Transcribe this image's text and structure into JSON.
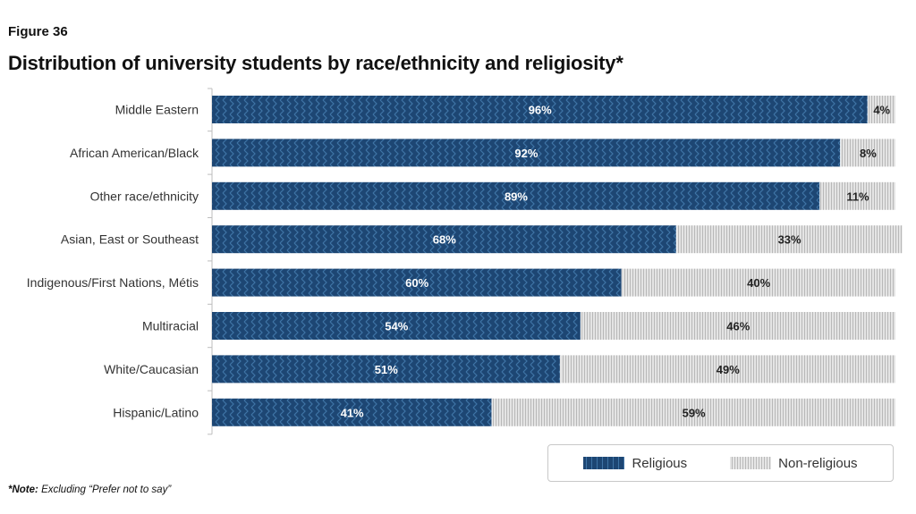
{
  "figure_label": "Figure 36",
  "title": "Distribution of university students by race/ethnicity and religiosity*",
  "note": {
    "prefix": "*Note:",
    "text": " Excluding “Prefer not to say”"
  },
  "colors": {
    "religious": "#1d4673",
    "religious_stripe": "#3f74a6",
    "non_religious": "#dcdcdc",
    "non_religious_stripe": "#b9b9b9"
  },
  "legend": {
    "religious": "Religious",
    "non_religious": "Non-religious"
  },
  "chart_data": {
    "type": "bar",
    "orientation": "horizontal",
    "stacked": true,
    "legend_position": "bottom-right",
    "categories": [
      "Middle Eastern",
      "African American/Black",
      "Other race/ethnicity",
      "Asian, East or Southeast",
      "Indigenous/First Nations, Métis",
      "Multiracial",
      "White/Caucasian",
      "Hispanic/Latino"
    ],
    "series": [
      {
        "name": "Religious",
        "values": [
          96,
          92,
          89,
          68,
          60,
          54,
          51,
          41
        ],
        "labels": [
          "96%",
          "92%",
          "89%",
          "68%",
          "60%",
          "54%",
          "51%",
          "41%"
        ]
      },
      {
        "name": "Non-religious",
        "values": [
          4,
          8,
          11,
          33,
          40,
          46,
          49,
          59
        ],
        "labels": [
          "4%",
          "8%",
          "11%",
          "33%",
          "40%",
          "46%",
          "49%",
          "59%"
        ]
      }
    ],
    "xlim": [
      0,
      100
    ]
  }
}
